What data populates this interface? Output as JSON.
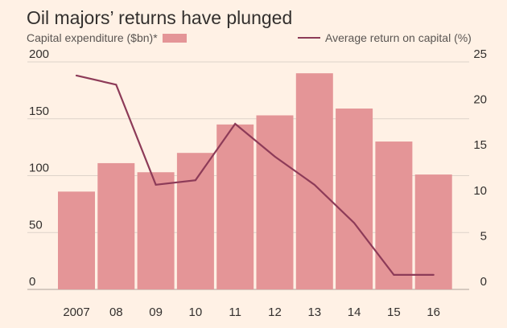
{
  "chart_data": {
    "type": "bar",
    "title": "Oil majors’ returns have plunged",
    "categories": [
      "2007",
      "08",
      "09",
      "10",
      "11",
      "12",
      "13",
      "14",
      "15",
      "16"
    ],
    "series": [
      {
        "name": "Capital expenditure ($bn)*",
        "type": "bar",
        "axis": "left",
        "values": [
          86,
          111,
          103,
          120,
          145,
          153,
          190,
          159,
          130,
          101
        ]
      },
      {
        "name": "Average return on capital (%)",
        "type": "line",
        "axis": "right",
        "values": [
          23.5,
          22.5,
          11.5,
          12.0,
          18.2,
          14.6,
          11.5,
          7.3,
          1.6,
          1.6
        ]
      }
    ],
    "left_axis": {
      "ylim": [
        0,
        200
      ],
      "ticks": [
        "0",
        "50",
        "100",
        "150",
        "200"
      ]
    },
    "right_axis": {
      "ylim": [
        0,
        25
      ],
      "ticks": [
        "0",
        "5",
        "10",
        "15",
        "20",
        "25"
      ]
    },
    "grid": true,
    "colors": {
      "background": "#fff1e5",
      "bar": "#e49597",
      "line": "#8d3b58",
      "grid": "#ddd3c9",
      "text": "#33302e"
    }
  },
  "legend": {
    "left_label": "Capital expenditure ($bn)*",
    "right_label": "Average return on capital (%)"
  }
}
